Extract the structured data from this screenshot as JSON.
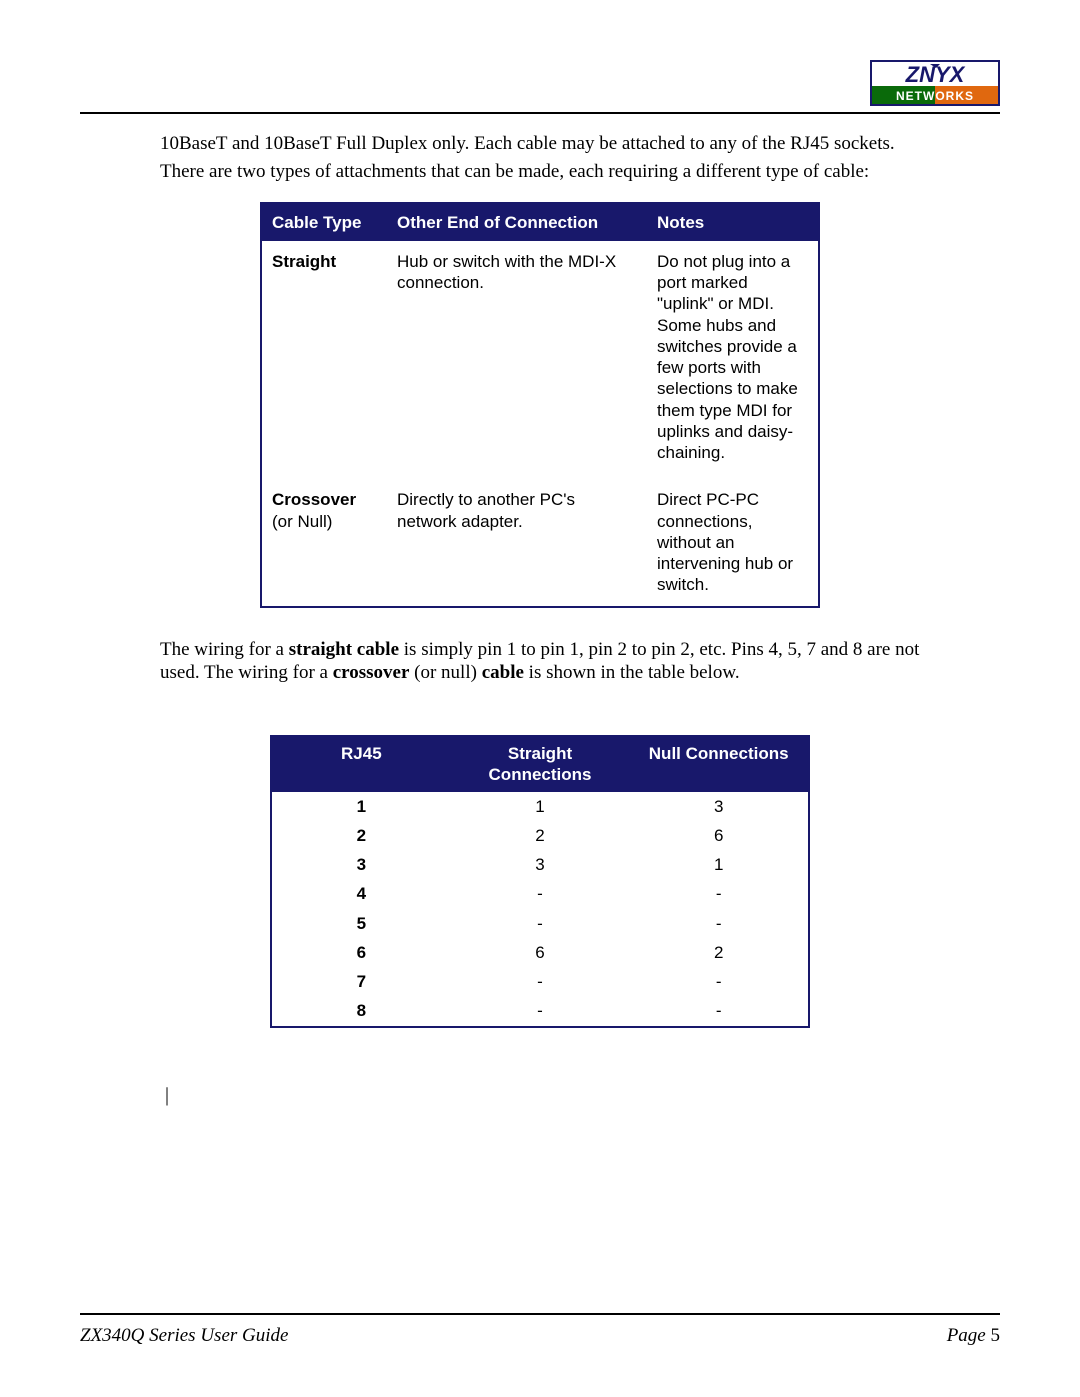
{
  "logo": {
    "text_top": "ZNYX",
    "text_bottom": "NETWORKS",
    "top_color": "#18186b",
    "bg_top": "#ffffff",
    "bg_bottom_left": "#0a6a0a",
    "bg_bottom_right": "#e0680f",
    "border_color": "#18186b"
  },
  "body": {
    "para1": "10BaseT and 10BaseT Full Duplex only. Each cable may be attached to any of the RJ45 sockets.",
    "para2": "There are two types of attachments that can be made, each requiring a different type of cable:",
    "para3_pre": "The wiring for a ",
    "para3_b1": "straight cable",
    "para3_mid": " is simply pin 1 to pin 1, pin 2 to pin 2, etc. Pins 4, 5, 7 and 8 are not used. The wiring for a ",
    "para3_b2": "crossover",
    "para3_mid2": " (or null) ",
    "para3_b3": "cable",
    "para3_end": " is shown in the table below."
  },
  "table1": {
    "headers": {
      "c1": "Cable Type",
      "c2": "Other End of Connection",
      "c3": "Notes"
    },
    "header_bg": "#18186b",
    "header_fg": "#ffffff",
    "border_color": "#18186b",
    "rows": [
      {
        "c1_bold": "Straight",
        "c1_rest": "",
        "c2": "Hub or switch with the MDI-X connection.",
        "c3": "Do not plug into a port marked \"uplink\" or MDI. Some hubs and switches provide a few ports with selections to make them type MDI for uplinks and daisy-chaining."
      },
      {
        "c1_bold": "Crossover",
        "c1_rest": "(or Null)",
        "c2": "Directly to another PC's network adapter.",
        "c3": "Direct PC-PC connections, without an intervening hub or switch."
      }
    ]
  },
  "table2": {
    "headers": {
      "c1": "RJ45",
      "c2": "Straight Connections",
      "c3": "Null Connections"
    },
    "header_bg": "#18186b",
    "header_fg": "#ffffff",
    "border_color": "#18186b",
    "rows": [
      {
        "pin": "1",
        "straight": "1",
        "nullc": "3"
      },
      {
        "pin": "2",
        "straight": "2",
        "nullc": "6"
      },
      {
        "pin": "3",
        "straight": "3",
        "nullc": "1"
      },
      {
        "pin": "4",
        "straight": "-",
        "nullc": "-"
      },
      {
        "pin": "5",
        "straight": "-",
        "nullc": "-"
      },
      {
        "pin": "6",
        "straight": "6",
        "nullc": "2"
      },
      {
        "pin": "7",
        "straight": "-",
        "nullc": "-"
      },
      {
        "pin": "8",
        "straight": "-",
        "nullc": "-"
      }
    ]
  },
  "footer": {
    "left": "ZX340Q  Series User Guide",
    "right_label": "Page ",
    "page_num": "5"
  },
  "cursor": "|"
}
